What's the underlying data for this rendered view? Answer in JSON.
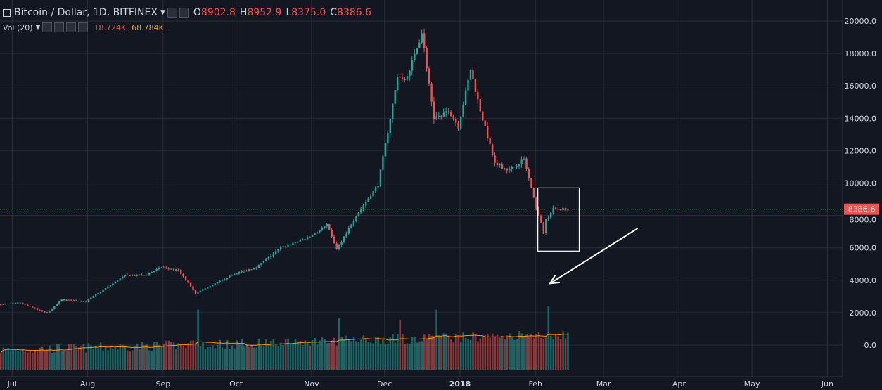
{
  "legend": {
    "symbol": "Bitcoin / Dollar, 1D, BITFINEX",
    "open_label": "O",
    "open": "8902.8",
    "high_label": "H",
    "high": "8952.9",
    "low_label": "L",
    "low": "8375.0",
    "close_label": "C",
    "close": "8386.6",
    "vol_label": "Vol (20)",
    "vol_value": "18.724K",
    "vol_ma": "68.784K"
  },
  "price_tag": "8386.6",
  "colors": {
    "up": "#26a69a",
    "down": "#ef5350",
    "ma": "#ff9800",
    "bg": "#131722",
    "grid": "#2a2e39"
  },
  "chart_data": {
    "type": "candlestick",
    "x_ticks": [
      "Jul",
      "Aug",
      "Sep",
      "Oct",
      "Nov",
      "Dec",
      "2018",
      "Feb",
      "Mar",
      "Apr",
      "May",
      "Jun"
    ],
    "y_ticks": [
      "20000.0",
      "18000.0",
      "16000.0",
      "14000.0",
      "12000.0",
      "10000.0",
      "8000.0",
      "6000.0",
      "4000.0",
      "2000.0",
      "0.0"
    ],
    "ylim": [
      -1500,
      20600
    ],
    "last_price": 8386.6,
    "price_path": [
      [
        "2017-06-26",
        2500
      ],
      [
        "2017-07-05",
        2600
      ],
      [
        "2017-07-16",
        1950
      ],
      [
        "2017-07-22",
        2800
      ],
      [
        "2017-08-01",
        2700
      ],
      [
        "2017-08-08",
        3400
      ],
      [
        "2017-08-17",
        4300
      ],
      [
        "2017-08-25",
        4300
      ],
      [
        "2017-09-01",
        4800
      ],
      [
        "2017-09-08",
        4600
      ],
      [
        "2017-09-15",
        3200
      ],
      [
        "2017-09-22",
        3700
      ],
      [
        "2017-10-01",
        4400
      ],
      [
        "2017-10-10",
        4800
      ],
      [
        "2017-10-20",
        6000
      ],
      [
        "2017-11-01",
        6700
      ],
      [
        "2017-11-08",
        7400
      ],
      [
        "2017-11-12",
        5900
      ],
      [
        "2017-11-20",
        8000
      ],
      [
        "2017-11-29",
        9900
      ],
      [
        "2017-12-07",
        16500
      ],
      [
        "2017-12-11",
        16500
      ],
      [
        "2017-12-17",
        19300
      ],
      [
        "2017-12-22",
        14000
      ],
      [
        "2017-12-28",
        14500
      ],
      [
        "2018-01-01",
        13500
      ],
      [
        "2018-01-06",
        17000
      ],
      [
        "2018-01-10",
        14500
      ],
      [
        "2018-01-16",
        11200
      ],
      [
        "2018-01-22",
        10800
      ],
      [
        "2018-01-28",
        11500
      ],
      [
        "2018-02-01",
        9000
      ],
      [
        "2018-02-05",
        7000
      ],
      [
        "2018-02-06",
        7700
      ],
      [
        "2018-02-09",
        8400
      ],
      [
        "2018-02-14",
        8386.6
      ]
    ],
    "volume_peaks": [
      [
        "2017-09-15",
        3600
      ],
      [
        "2017-11-12",
        3100
      ],
      [
        "2017-12-07",
        3000
      ],
      [
        "2017-12-22",
        3600
      ],
      [
        "2018-01-16",
        2100
      ],
      [
        "2018-02-06",
        3800
      ]
    ],
    "annotations": [
      {
        "type": "rectangle",
        "x0": "2018-02-02",
        "x1": "2018-02-19",
        "y0": 5800,
        "y1": 9700
      },
      {
        "type": "arrow",
        "from": [
          "2018-03-15",
          7200
        ],
        "to": [
          "2018-02-07",
          3800
        ]
      }
    ]
  }
}
